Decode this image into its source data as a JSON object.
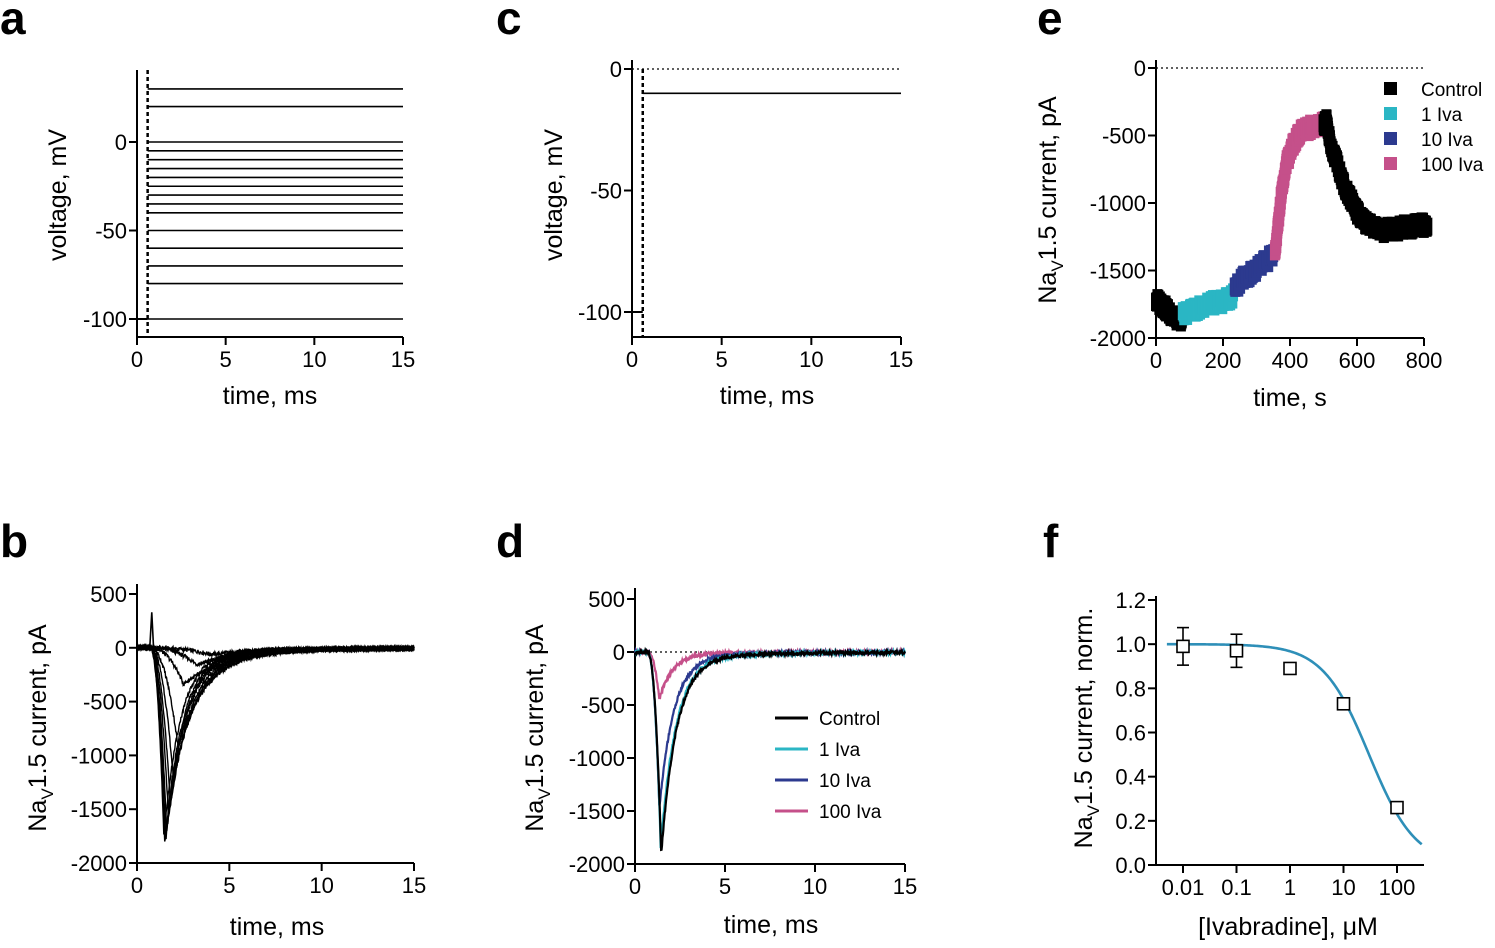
{
  "chart_data": [
    {
      "panel": "a",
      "type": "line",
      "xlabel": "time, ms",
      "ylabel": "voltage, mV",
      "xlim": [
        0,
        15
      ],
      "ylim": [
        -110,
        40
      ],
      "xticks": [
        0,
        5,
        10,
        15
      ],
      "yticks": [
        -100,
        -50,
        0
      ],
      "step_time_ms": 0.6,
      "holding_mV": -100,
      "steps_mV": [
        -80,
        -70,
        -60,
        -50,
        -40,
        -35,
        -30,
        -25,
        -20,
        -15,
        -10,
        -5,
        0,
        20,
        30
      ]
    },
    {
      "panel": "b",
      "type": "line",
      "xlabel": "time, ms",
      "ylabel": "NaV1.5 current, pA",
      "xlim": [
        0,
        15
      ],
      "ylim": [
        -2000,
        500
      ],
      "xticks": [
        0,
        5,
        10,
        15
      ],
      "yticks": [
        -2000,
        -1500,
        -1000,
        -500,
        0,
        500
      ],
      "capacitive_spike_pA": 330,
      "traces": [
        {
          "peak_time_ms": 4.0,
          "peak_pA": -60,
          "tau_ms": 3.0
        },
        {
          "peak_time_ms": 3.2,
          "peak_pA": -150,
          "tau_ms": 2.8
        },
        {
          "peak_time_ms": 2.5,
          "peak_pA": -330,
          "tau_ms": 2.5
        },
        {
          "peak_time_ms": 2.2,
          "peak_pA": -890,
          "tau_ms": 1.6
        },
        {
          "peak_time_ms": 1.95,
          "peak_pA": -1180,
          "tau_ms": 1.4
        },
        {
          "peak_time_ms": 1.8,
          "peak_pA": -1420,
          "tau_ms": 1.25
        },
        {
          "peak_time_ms": 1.7,
          "peak_pA": -1560,
          "tau_ms": 1.15
        },
        {
          "peak_time_ms": 1.6,
          "peak_pA": -1680,
          "tau_ms": 1.05
        },
        {
          "peak_time_ms": 1.55,
          "peak_pA": -1750,
          "tau_ms": 1.0
        },
        {
          "peak_time_ms": 1.5,
          "peak_pA": -1790,
          "tau_ms": 0.95
        },
        {
          "peak_time_ms": 1.45,
          "peak_pA": -1720,
          "tau_ms": 0.9
        }
      ]
    },
    {
      "panel": "c",
      "type": "line",
      "xlabel": "time, ms",
      "ylabel": "voltage, mV",
      "xlim": [
        0,
        15
      ],
      "ylim": [
        -110,
        5
      ],
      "xticks": [
        0,
        5,
        10,
        15
      ],
      "yticks": [
        -100,
        -50,
        0
      ],
      "step_time_ms": 0.6,
      "holding_mV": -100,
      "step_mV": -10
    },
    {
      "panel": "d",
      "type": "line",
      "xlabel": "time, ms",
      "ylabel": "NaV1.5 current, pA",
      "xlim": [
        0,
        15
      ],
      "ylim": [
        -2000,
        500
      ],
      "xticks": [
        0,
        5,
        10,
        15
      ],
      "yticks": [
        -2000,
        -1500,
        -1000,
        -500,
        0,
        500
      ],
      "series": [
        {
          "name": "Control",
          "color": "#000000",
          "peak_time_ms": 1.45,
          "peak_pA": -1870,
          "tau_ms": 0.85
        },
        {
          "name": "1 Iva",
          "color": "#2bb6c4",
          "peak_time_ms": 1.42,
          "peak_pA": -1800,
          "tau_ms": 0.85
        },
        {
          "name": "10 Iva",
          "color": "#2c3a8f",
          "peak_time_ms": 1.35,
          "peak_pA": -1440,
          "tau_ms": 0.8
        },
        {
          "name": "100 Iva",
          "color": "#c5508a",
          "peak_time_ms": 1.35,
          "peak_pA": -430,
          "tau_ms": 0.75
        }
      ]
    },
    {
      "panel": "e",
      "type": "scatter",
      "xlabel": "time, s",
      "ylabel": "NaV1.5 current, pA",
      "xlim": [
        0,
        800
      ],
      "ylim": [
        -2000,
        0
      ],
      "xticks": [
        0,
        200,
        400,
        600,
        800
      ],
      "yticks": [
        -2000,
        -1500,
        -1000,
        -500,
        0
      ],
      "series": [
        {
          "name": "Control",
          "color": "#000000",
          "x": [
            0,
            20,
            40,
            60,
            80
          ],
          "y": [
            -1720,
            -1760,
            -1810,
            -1850,
            -1860
          ]
        },
        {
          "name": "1 Iva",
          "color": "#2bb6c4",
          "x": [
            80,
            110,
            140,
            170,
            200,
            230
          ],
          "y": [
            -1820,
            -1800,
            -1760,
            -1740,
            -1730,
            -1690
          ]
        },
        {
          "name": "10 Iva",
          "color": "#2c3a8f",
          "x": [
            235,
            260,
            290,
            320,
            350
          ],
          "y": [
            -1640,
            -1560,
            -1510,
            -1450,
            -1380
          ]
        },
        {
          "name": "100 Iva",
          "color": "#c5508a",
          "x": [
            355,
            365,
            375,
            390,
            410,
            430,
            460,
            490,
            500
          ],
          "y": [
            -1380,
            -1150,
            -900,
            -700,
            -560,
            -480,
            -440,
            -420,
            -410
          ]
        },
        {
          "name": "Control",
          "color": "#000000",
          "x": [
            500,
            510,
            520,
            540,
            560,
            580,
            600,
            620,
            650,
            680,
            710,
            740,
            780,
            810
          ],
          "y": [
            -410,
            -400,
            -560,
            -700,
            -860,
            -960,
            -1070,
            -1140,
            -1190,
            -1200,
            -1195,
            -1180,
            -1170,
            -1160
          ]
        }
      ],
      "legend": [
        "Control",
        "1 Iva",
        "10 Iva",
        "100 Iva"
      ]
    },
    {
      "panel": "f",
      "type": "scatter",
      "xlabel": "[Ivabradine], μM",
      "ylabel": "NaV1.5 current, norm.",
      "xscale": "log",
      "xlim": [
        0.003,
        300
      ],
      "ylim": [
        0,
        1.2
      ],
      "xticks": [
        0.01,
        0.1,
        1,
        10,
        100
      ],
      "xtick_labels": [
        "0.01",
        "0.1",
        "1",
        "10",
        "100"
      ],
      "yticks": [
        0,
        0.2,
        0.4,
        0.6,
        0.8,
        1.0,
        1.2
      ],
      "ytick_labels": [
        "0.0",
        "0.2",
        "0.4",
        "0.6",
        "0.8",
        "1.0",
        "1.2"
      ],
      "points": {
        "x": [
          0.01,
          0.1,
          1,
          10,
          100
        ],
        "y": [
          0.99,
          0.97,
          0.89,
          0.73,
          0.26
        ],
        "err": [
          0.085,
          0.075,
          0.0,
          0.0,
          0.0
        ]
      },
      "fit": {
        "color": "#2e8fb8",
        "ic50_uM": 30,
        "hill": 1
      }
    }
  ],
  "panels": {
    "a": {
      "letter": "a",
      "xlabel": "time, ms",
      "ylabel": "voltage, mV"
    },
    "b": {
      "letter": "b",
      "xlabel": "time, ms",
      "ylabel_main": "Na",
      "ylabel_sub": "V",
      "ylabel_rest": "1.5 current, pA"
    },
    "c": {
      "letter": "c",
      "xlabel": "time, ms",
      "ylabel": "voltage, mV"
    },
    "d": {
      "letter": "d",
      "xlabel": "time, ms",
      "ylabel_main": "Na",
      "ylabel_sub": "V",
      "ylabel_rest": "1.5 current, pA"
    },
    "e": {
      "letter": "e",
      "xlabel": "time, s",
      "ylabel_main": "Na",
      "ylabel_sub": "V",
      "ylabel_rest": "1.5 current, pA"
    },
    "f": {
      "letter": "f",
      "xlabel": "[Ivabradine], μM",
      "ylabel_main": "Na",
      "ylabel_sub": "V",
      "ylabel_rest": "1.5 current, norm."
    }
  }
}
